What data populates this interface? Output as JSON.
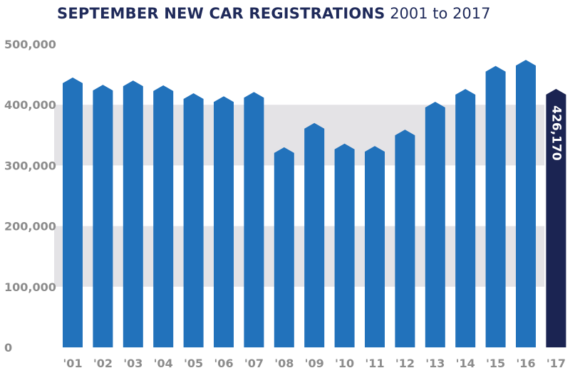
{
  "title": {
    "bold": "SEPTEMBER NEW CAR REGISTRATIONS",
    "light": "2001 to 2017"
  },
  "colors": {
    "bar": "#2272bb",
    "highlight": "#1b2452",
    "band": "#e4e3e6",
    "tick": "#8c8c8c",
    "title": "#1f2a5a"
  },
  "chart_data": {
    "type": "bar",
    "title": "SEPTEMBER NEW CAR REGISTRATIONS 2001 to 2017",
    "xlabel": "",
    "ylabel": "",
    "ylim": [
      0,
      500000
    ],
    "yticks": [
      0,
      100000,
      200000,
      300000,
      400000,
      500000
    ],
    "ytick_labels": [
      "0",
      "100,000",
      "200,000",
      "300,000",
      "400,000",
      "500,000"
    ],
    "categories": [
      "'01",
      "'02",
      "'03",
      "'04",
      "'05",
      "'06",
      "'07",
      "'08",
      "'09",
      "'10",
      "'11",
      "'12",
      "'13",
      "'14",
      "'15",
      "'16",
      "'17"
    ],
    "values": [
      445000,
      433000,
      440000,
      432000,
      419000,
      414000,
      421000,
      330000,
      370000,
      336000,
      332000,
      359000,
      405000,
      426000,
      464000,
      474000,
      426170
    ],
    "highlight_index": 16,
    "data_label": "426,170",
    "shaded_bands": [
      [
        100000,
        200000
      ],
      [
        300000,
        400000
      ]
    ]
  }
}
